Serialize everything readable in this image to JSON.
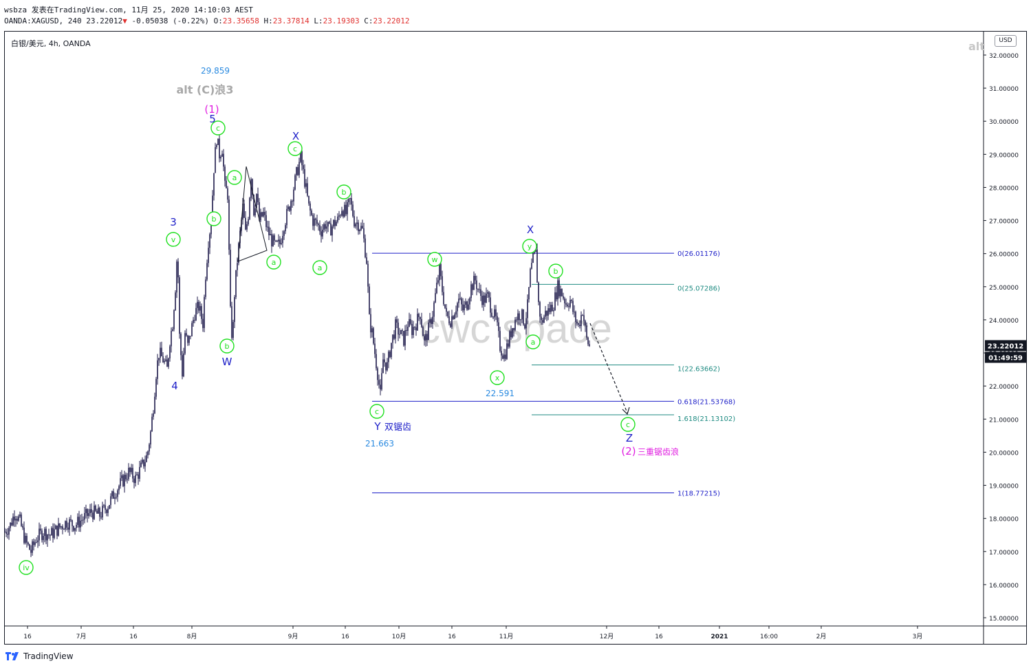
{
  "header": {
    "line1": "wsbza 发表在TradingView.com, 11月 25, 2020 14:10:03 AEST",
    "symbol": "OANDA:XAGUSD, 240",
    "last": "23.22012",
    "change": "-0.05038 (-0.22%)",
    "o_label": "O:",
    "o_value": "23.35658",
    "h_label": "H:",
    "h_value": "23.37814",
    "l_label": "L:",
    "l_value": "23.19303",
    "c_label": "C:",
    "c_value": "23.22012"
  },
  "chart_title": "白银/美元, 4h, OANDA",
  "currency_button": "USD",
  "alt_right": "alt",
  "footer": {
    "brand": "TradingView",
    "logo_icon": "tradingview-logo-icon"
  },
  "colors": {
    "candle": "#1e1a4a",
    "blue_fib": "#1c1ec8",
    "teal_fib": "#1c8a80",
    "green": "#1ee01e",
    "magenta": "#e01ee0",
    "wave_blue": "#1c1ec8",
    "price_badge": "#131722"
  },
  "chart_data": {
    "type": "candlestick",
    "ylim": [
      14.7,
      32.6
    ],
    "x_ticks": [
      "16",
      "7月",
      "16",
      "8月",
      "9月",
      "16",
      "10月",
      "16",
      "11月",
      "12月",
      "16",
      "2021",
      "16:00",
      "2月",
      "3月"
    ],
    "y_ticks": [
      "32.00000",
      "31.00000",
      "30.00000",
      "29.00000",
      "28.00000",
      "27.00000",
      "26.00000",
      "25.00000",
      "24.00000",
      "23.00000",
      "22.00000",
      "21.00000",
      "20.00000",
      "19.00000",
      "18.00000",
      "17.00000",
      "16.00000",
      "15.00000"
    ],
    "y_tick_values": [
      32,
      31,
      30,
      29,
      28,
      27,
      26,
      25,
      24,
      23,
      22,
      21,
      20,
      19,
      18,
      17,
      16,
      15
    ],
    "last_price": "23.22012",
    "countdown": "01:49:59",
    "watermark": "cwc space",
    "path": [
      [
        0,
        17.6
      ],
      [
        8,
        17.8
      ],
      [
        15,
        18.2
      ],
      [
        22,
        17.9
      ],
      [
        30,
        17.3
      ],
      [
        38,
        17.0
      ],
      [
        46,
        17.4
      ],
      [
        56,
        17.6
      ],
      [
        66,
        17.5
      ],
      [
        78,
        17.7
      ],
      [
        90,
        17.9
      ],
      [
        102,
        17.8
      ],
      [
        114,
        18.0
      ],
      [
        126,
        18.2
      ],
      [
        138,
        18.1
      ],
      [
        150,
        18.4
      ],
      [
        160,
        18.8
      ],
      [
        170,
        19.1
      ],
      [
        180,
        19.4
      ],
      [
        190,
        19.2
      ],
      [
        200,
        19.6
      ],
      [
        207,
        19.9
      ],
      [
        212,
        20.6
      ],
      [
        216,
        21.4
      ],
      [
        220,
        22.4
      ],
      [
        224,
        23.0
      ],
      [
        230,
        22.8
      ],
      [
        236,
        22.5
      ],
      [
        240,
        23.4
      ],
      [
        244,
        23.9
      ],
      [
        248,
        25.0
      ],
      [
        251,
        26.2
      ],
      [
        254,
        23.5
      ],
      [
        258,
        22.4
      ],
      [
        262,
        23.6
      ],
      [
        266,
        23.2
      ],
      [
        270,
        23.6
      ],
      [
        276,
        24.2
      ],
      [
        282,
        24.4
      ],
      [
        288,
        23.9
      ],
      [
        292,
        25.4
      ],
      [
        296,
        26.4
      ],
      [
        300,
        27.0
      ],
      [
        304,
        28.6
      ],
      [
        308,
        29.5
      ],
      [
        312,
        29.0
      ],
      [
        316,
        29.2
      ],
      [
        320,
        28.0
      ],
      [
        324,
        27.8
      ],
      [
        328,
        24.2
      ],
      [
        331,
        23.3
      ],
      [
        334,
        24.8
      ],
      [
        338,
        25.8
      ],
      [
        342,
        26.6
      ],
      [
        346,
        27.4
      ],
      [
        350,
        26.6
      ],
      [
        354,
        27.2
      ],
      [
        358,
        28.4
      ],
      [
        362,
        27.3
      ],
      [
        366,
        27.8
      ],
      [
        370,
        27.0
      ],
      [
        376,
        27.2
      ],
      [
        382,
        26.7
      ],
      [
        388,
        26.4
      ],
      [
        394,
        26.2
      ],
      [
        400,
        26.3
      ],
      [
        406,
        26.9
      ],
      [
        412,
        27.3
      ],
      [
        418,
        27.8
      ],
      [
        424,
        28.4
      ],
      [
        430,
        28.9
      ],
      [
        436,
        28.2
      ],
      [
        442,
        27.4
      ],
      [
        448,
        27.0
      ],
      [
        454,
        26.9
      ],
      [
        460,
        26.7
      ],
      [
        466,
        26.9
      ],
      [
        472,
        26.7
      ],
      [
        478,
        26.9
      ],
      [
        484,
        27.0
      ],
      [
        490,
        27.4
      ],
      [
        496,
        27.2
      ],
      [
        502,
        27.6
      ],
      [
        508,
        27.0
      ],
      [
        514,
        26.9
      ],
      [
        520,
        26.7
      ],
      [
        526,
        25.8
      ],
      [
        530,
        24.0
      ],
      [
        534,
        23.6
      ],
      [
        538,
        23.0
      ],
      [
        542,
        22.4
      ],
      [
        546,
        21.7
      ],
      [
        550,
        22.8
      ],
      [
        556,
        22.6
      ],
      [
        562,
        23.3
      ],
      [
        568,
        23.8
      ],
      [
        574,
        23.6
      ],
      [
        580,
        23.4
      ],
      [
        586,
        23.9
      ],
      [
        592,
        23.7
      ],
      [
        598,
        23.9
      ],
      [
        604,
        24.2
      ],
      [
        610,
        23.3
      ],
      [
        616,
        23.7
      ],
      [
        622,
        24.2
      ],
      [
        628,
        25.0
      ],
      [
        632,
        25.5
      ],
      [
        636,
        24.9
      ],
      [
        642,
        24.1
      ],
      [
        648,
        24.0
      ],
      [
        654,
        24.3
      ],
      [
        660,
        24.6
      ],
      [
        666,
        24.3
      ],
      [
        672,
        24.5
      ],
      [
        678,
        25.0
      ],
      [
        684,
        25.2
      ],
      [
        690,
        24.8
      ],
      [
        696,
        24.6
      ],
      [
        702,
        24.7
      ],
      [
        708,
        24.3
      ],
      [
        714,
        24.0
      ],
      [
        720,
        23.2
      ],
      [
        726,
        22.9
      ],
      [
        732,
        23.3
      ],
      [
        738,
        23.8
      ],
      [
        744,
        24.1
      ],
      [
        750,
        24.2
      ],
      [
        756,
        23.9
      ],
      [
        760,
        24.4
      ],
      [
        764,
        25.4
      ],
      [
        768,
        25.8
      ],
      [
        772,
        26.0
      ],
      [
        776,
        24.5
      ],
      [
        780,
        23.9
      ],
      [
        786,
        24.2
      ],
      [
        792,
        24.3
      ],
      [
        798,
        24.5
      ],
      [
        804,
        25.0
      ],
      [
        810,
        24.8
      ],
      [
        816,
        24.5
      ],
      [
        822,
        24.6
      ],
      [
        828,
        24.1
      ],
      [
        834,
        23.8
      ],
      [
        840,
        24.3
      ],
      [
        846,
        23.4
      ],
      [
        850,
        23.2
      ]
    ],
    "fib_levels_blue": [
      {
        "label": "0(26.01176)",
        "value": 26.01176
      },
      {
        "label": "0.618(21.53768)",
        "value": 21.53768
      },
      {
        "label": "1(18.77215)",
        "value": 18.77215
      }
    ],
    "fib_levels_teal": [
      {
        "label": "0(25.07286)",
        "value": 25.07286
      },
      {
        "label": "1(22.63662)",
        "value": 22.63662
      },
      {
        "label": "1.618(21.13102)",
        "value": 21.13102
      }
    ],
    "price_labels": [
      {
        "text": "29.859",
        "value": 29.859
      },
      {
        "text": "21.663",
        "value": 21.663
      },
      {
        "text": "22.591",
        "value": 22.591
      }
    ],
    "annotations": {
      "alt_c3": "alt (C)浪3",
      "wave1": "(1)",
      "wave2": "(2)",
      "triple_zigzag": "三重锯齿浪",
      "double_zigzag": "双锯齿",
      "W": "W",
      "X1": "X",
      "X2": "X",
      "Y": "Y",
      "Z": "Z",
      "n3": "3",
      "n4": "4",
      "n5": "5"
    },
    "circle_labels": [
      "iv",
      "v",
      "a",
      "b",
      "c",
      "a",
      "b",
      "c",
      "a",
      "b",
      "c",
      "w",
      "x",
      "y",
      "a",
      "b",
      "c"
    ]
  }
}
